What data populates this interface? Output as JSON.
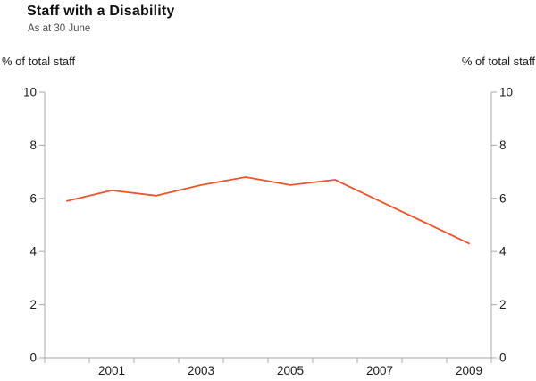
{
  "header": {
    "title": "Staff with a Disability",
    "subtitle": "As at 30 June"
  },
  "chart": {
    "left_unit_label": "% of total staff",
    "right_unit_label": "% of total staff"
  },
  "colors": {
    "line": "#e8552e",
    "axis": "#a9a9a9",
    "tick_text": "#1a1a1a"
  },
  "chart_data": {
    "type": "line",
    "title": "Staff with a Disability",
    "subtitle": "As at 30 June",
    "ylabel_left": "% of total staff",
    "ylabel_right": "% of total staff",
    "x": [
      2000,
      2001,
      2002,
      2003,
      2004,
      2005,
      2006,
      2007,
      2008,
      2009
    ],
    "series": [
      {
        "name": "Staff with a disability",
        "values": [
          5.9,
          6.3,
          6.1,
          6.5,
          6.8,
          6.5,
          6.7,
          5.9,
          5.1,
          4.3
        ]
      }
    ],
    "ylim": [
      0,
      10
    ],
    "yticks": [
      0,
      2,
      4,
      6,
      8,
      10
    ],
    "xtick_label_years": [
      2001,
      2003,
      2005,
      2007,
      2009
    ],
    "xtick_labels": [
      "2001",
      "2003",
      "2005",
      "2007",
      "2009"
    ],
    "grid": false,
    "legend": "none",
    "dual_axis": true
  }
}
